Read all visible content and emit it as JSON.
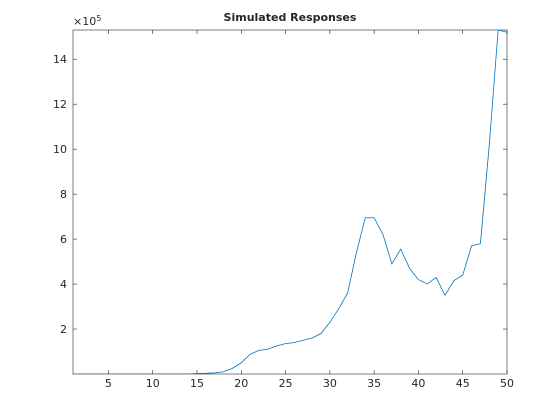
{
  "chart_data": {
    "type": "line",
    "title": "Simulated Responses",
    "y_multiplier": "×10",
    "y_multiplier_exponent": "5",
    "x": [
      1,
      2,
      3,
      4,
      5,
      6,
      7,
      8,
      9,
      10,
      11,
      12,
      13,
      14,
      15,
      16,
      17,
      18,
      19,
      20,
      21,
      22,
      23,
      24,
      25,
      26,
      27,
      28,
      29,
      30,
      31,
      32,
      33,
      34,
      35,
      36,
      37,
      38,
      39,
      40,
      41,
      42,
      43,
      44,
      45,
      46,
      47,
      48,
      49,
      50
    ],
    "series": [
      {
        "color": "#0072bd",
        "values": [
          0,
          0,
          0,
          0,
          0,
          0,
          0,
          0,
          0,
          0,
          0,
          0,
          0,
          0,
          0.02,
          0.03,
          0.05,
          0.1,
          0.25,
          0.5,
          0.88,
          1.05,
          1.1,
          1.25,
          1.35,
          1.4,
          1.5,
          1.6,
          1.8,
          2.3,
          2.9,
          3.6,
          5.4,
          6.95,
          6.95,
          6.2,
          4.9,
          5.55,
          4.7,
          4.2,
          4.0,
          4.3,
          3.5,
          4.15,
          4.4,
          5.7,
          5.8,
          10.2,
          15.3,
          15.2
        ]
      }
    ],
    "xlim": [
      1,
      50
    ],
    "xticks": [
      5,
      10,
      15,
      20,
      25,
      30,
      35,
      40,
      45,
      50
    ],
    "ylim": [
      0,
      15.3
    ],
    "yticks": [
      2,
      4,
      6,
      8,
      10,
      12,
      14
    ]
  }
}
